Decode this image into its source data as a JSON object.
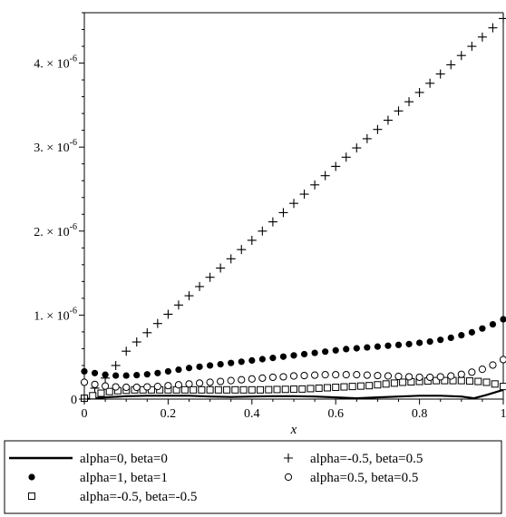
{
  "chart_data": {
    "type": "scatter",
    "xlabel": "x",
    "ylabel": "",
    "xlim": [
      0,
      1
    ],
    "ylim": [
      0,
      4.6e-06
    ],
    "xticks": [
      {
        "value": 0,
        "label": "0"
      },
      {
        "value": 0.2,
        "label": "0.2"
      },
      {
        "value": 0.4,
        "label": "0.4"
      },
      {
        "value": 0.6,
        "label": "0.6"
      },
      {
        "value": 0.8,
        "label": "0.8"
      },
      {
        "value": 1,
        "label": "1"
      }
    ],
    "yticks": [
      {
        "value": 0,
        "mantissa": "0",
        "exponent": ""
      },
      {
        "value": 1e-06,
        "mantissa": "1. × 10",
        "exponent": "-6"
      },
      {
        "value": 2e-06,
        "mantissa": "2. × 10",
        "exponent": "-6"
      },
      {
        "value": 3e-06,
        "mantissa": "3. × 10",
        "exponent": "-6"
      },
      {
        "value": 4e-06,
        "mantissa": "4. × 10",
        "exponent": "-6"
      }
    ],
    "grid": false,
    "legend_position": "bottom",
    "series": [
      {
        "name": "alpha=0, beta=0",
        "marker": "line",
        "x": [
          0,
          0.05,
          0.1,
          0.15,
          0.2,
          0.25,
          0.3,
          0.35,
          0.4,
          0.45,
          0.5,
          0.55,
          0.6,
          0.65,
          0.7,
          0.75,
          0.8,
          0.85,
          0.9,
          0.93,
          0.96,
          1.0
        ],
        "y": [
          0.0,
          2e-08,
          3.5e-08,
          4e-08,
          4e-08,
          4e-08,
          3e-08,
          2.5e-08,
          3e-08,
          3.5e-08,
          3.5e-08,
          3e-08,
          2e-08,
          1e-08,
          2e-08,
          3e-08,
          4e-08,
          4e-08,
          3e-08,
          1e-08,
          5e-08,
          1.1e-07
        ]
      },
      {
        "name": "alpha=1, beta=1",
        "marker": "filled-circle",
        "x": [
          0,
          0.025,
          0.05,
          0.075,
          0.1,
          0.125,
          0.15,
          0.175,
          0.2,
          0.225,
          0.25,
          0.275,
          0.3,
          0.325,
          0.35,
          0.375,
          0.4,
          0.425,
          0.45,
          0.475,
          0.5,
          0.525,
          0.55,
          0.575,
          0.6,
          0.625,
          0.65,
          0.675,
          0.7,
          0.725,
          0.75,
          0.775,
          0.8,
          0.825,
          0.85,
          0.875,
          0.9,
          0.925,
          0.95,
          0.975,
          1.0
        ],
        "y": [
          3.3e-07,
          3.1e-07,
          2.9e-07,
          2.8e-07,
          2.8e-07,
          2.85e-07,
          2.95e-07,
          3.1e-07,
          3.3e-07,
          3.5e-07,
          3.7e-07,
          3.85e-07,
          4e-07,
          4.15e-07,
          4.3e-07,
          4.45e-07,
          4.6e-07,
          4.75e-07,
          4.9e-07,
          5.05e-07,
          5.2e-07,
          5.35e-07,
          5.5e-07,
          5.65e-07,
          5.8e-07,
          5.95e-07,
          6.05e-07,
          6.15e-07,
          6.25e-07,
          6.35e-07,
          6.45e-07,
          6.55e-07,
          6.7e-07,
          6.85e-07,
          7.05e-07,
          7.3e-07,
          7.6e-07,
          7.95e-07,
          8.4e-07,
          8.9e-07,
          9.5e-07
        ]
      },
      {
        "name": "alpha=-0.5, beta=-0.5",
        "marker": "open-square",
        "x": [
          0,
          0.02,
          0.04,
          0.06,
          0.08,
          0.1,
          0.12,
          0.14,
          0.16,
          0.18,
          0.2,
          0.22,
          0.24,
          0.26,
          0.28,
          0.3,
          0.32,
          0.34,
          0.36,
          0.38,
          0.4,
          0.42,
          0.44,
          0.46,
          0.48,
          0.5,
          0.52,
          0.54,
          0.56,
          0.58,
          0.6,
          0.62,
          0.64,
          0.66,
          0.68,
          0.7,
          0.72,
          0.74,
          0.76,
          0.78,
          0.8,
          0.82,
          0.84,
          0.86,
          0.88,
          0.9,
          0.92,
          0.94,
          0.96,
          0.98,
          1.0
        ],
        "y": [
          1e-08,
          4e-08,
          7e-08,
          9e-08,
          1e-07,
          1.05e-07,
          1.1e-07,
          1.1e-07,
          1.1e-07,
          1.1e-07,
          1.1e-07,
          1.1e-07,
          1.1e-07,
          1.1e-07,
          1.1e-07,
          1.1e-07,
          1.1e-07,
          1.1e-07,
          1.1e-07,
          1.1e-07,
          1.1e-07,
          1.1e-07,
          1.12e-07,
          1.14e-07,
          1.16e-07,
          1.18e-07,
          1.2e-07,
          1.25e-07,
          1.3e-07,
          1.35e-07,
          1.4e-07,
          1.45e-07,
          1.5e-07,
          1.55e-07,
          1.6e-07,
          1.7e-07,
          1.8e-07,
          1.9e-07,
          2e-07,
          2.05e-07,
          2.1e-07,
          2.15e-07,
          2.2e-07,
          2.2e-07,
          2.2e-07,
          2.2e-07,
          2.15e-07,
          2.1e-07,
          2e-07,
          1.8e-07,
          1.5e-07
        ]
      },
      {
        "name": "alpha=-0.5, beta=0.5",
        "marker": "plus",
        "x": [
          0,
          0.025,
          0.05,
          0.075,
          0.1,
          0.125,
          0.15,
          0.175,
          0.2,
          0.225,
          0.25,
          0.275,
          0.3,
          0.325,
          0.35,
          0.375,
          0.4,
          0.425,
          0.45,
          0.475,
          0.5,
          0.525,
          0.55,
          0.575,
          0.6,
          0.625,
          0.65,
          0.675,
          0.7,
          0.725,
          0.75,
          0.775,
          0.8,
          0.825,
          0.85,
          0.875,
          0.9,
          0.925,
          0.95,
          0.975,
          1.0
        ],
        "y": [
          0.0,
          1.3e-07,
          2.5e-07,
          4e-07,
          5.7e-07,
          6.8e-07,
          7.9e-07,
          9e-07,
          1.01e-06,
          1.12e-06,
          1.23e-06,
          1.34e-06,
          1.45e-06,
          1.56e-06,
          1.67e-06,
          1.78e-06,
          1.89e-06,
          2e-06,
          2.11e-06,
          2.22e-06,
          2.33e-06,
          2.44e-06,
          2.55e-06,
          2.66e-06,
          2.77e-06,
          2.88e-06,
          2.99e-06,
          3.1e-06,
          3.21e-06,
          3.32e-06,
          3.43e-06,
          3.54e-06,
          3.65e-06,
          3.76e-06,
          3.87e-06,
          3.98e-06,
          4.09e-06,
          4.2e-06,
          4.31e-06,
          4.42e-06,
          4.53e-06
        ]
      },
      {
        "name": "alpha=0.5, beta=0.5",
        "marker": "open-circle",
        "x": [
          0,
          0.025,
          0.05,
          0.075,
          0.1,
          0.125,
          0.15,
          0.175,
          0.2,
          0.225,
          0.25,
          0.275,
          0.3,
          0.325,
          0.35,
          0.375,
          0.4,
          0.425,
          0.45,
          0.475,
          0.5,
          0.525,
          0.55,
          0.575,
          0.6,
          0.625,
          0.65,
          0.675,
          0.7,
          0.725,
          0.75,
          0.775,
          0.8,
          0.825,
          0.85,
          0.875,
          0.9,
          0.925,
          0.95,
          0.975,
          1.0
        ],
        "y": [
          2e-07,
          1.75e-07,
          1.55e-07,
          1.45e-07,
          1.4e-07,
          1.4e-07,
          1.45e-07,
          1.5e-07,
          1.6e-07,
          1.7e-07,
          1.8e-07,
          1.9e-07,
          2e-07,
          2.1e-07,
          2.2e-07,
          2.3e-07,
          2.4e-07,
          2.5e-07,
          2.6e-07,
          2.65e-07,
          2.75e-07,
          2.8e-07,
          2.85e-07,
          2.9e-07,
          2.9e-07,
          2.9e-07,
          2.9e-07,
          2.85e-07,
          2.8e-07,
          2.75e-07,
          2.7e-07,
          2.65e-07,
          2.6e-07,
          2.6e-07,
          2.65e-07,
          2.75e-07,
          2.95e-07,
          3.2e-07,
          3.55e-07,
          4.05e-07,
          4.7e-07
        ]
      }
    ],
    "legend": {
      "rows": [
        [
          "alpha=0, beta=0",
          "alpha=-0.5, beta=0.5"
        ],
        [
          "alpha=1, beta=1",
          "alpha=0.5, beta=0.5"
        ],
        [
          "alpha=-0.5, beta=-0.5"
        ]
      ]
    },
    "colors": {
      "ink": "#000000",
      "background": "#ffffff"
    }
  }
}
